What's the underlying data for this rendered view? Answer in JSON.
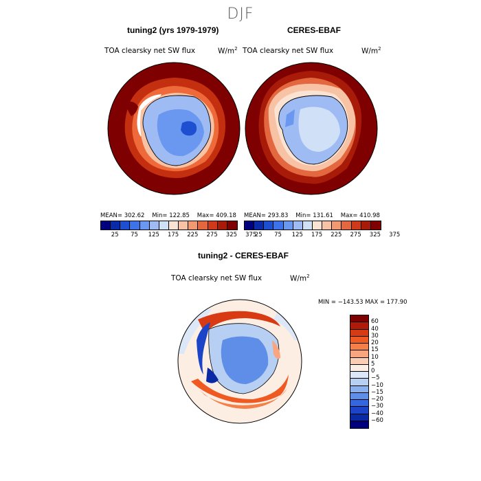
{
  "season": "DJF",
  "panels": {
    "left": {
      "title": "tuning2 (yrs 1979-1979)",
      "variable": "TOA clearsky net SW flux",
      "units": "W/m",
      "units_sup": "2",
      "mean_label": "MEAN=",
      "mean": "302.62",
      "min_label": "Min=",
      "min": "122.85",
      "max_label": "Max=",
      "max": "409.18"
    },
    "right": {
      "title": "CERES-EBAF",
      "variable": "TOA clearsky net SW flux",
      "units": "W/m",
      "units_sup": "2",
      "mean_label": "MEAN=",
      "mean": "293.83",
      "min_label": "Min=",
      "min": "131.61",
      "max_label": "Max=",
      "max": "410.98"
    },
    "diff": {
      "title": "tuning2 - CERES-EBAF",
      "variable": "TOA clearsky net SW flux",
      "units": "W/m",
      "units_sup": "2",
      "minmax": "MIN = −143.53  MAX = 177.90"
    }
  },
  "colorbar_abs": {
    "colors": [
      "#00007f",
      "#0a2aa8",
      "#1e4fd0",
      "#3d73e8",
      "#6a97f0",
      "#9ebbf4",
      "#cfe0f7",
      "#fbe3d3",
      "#f8c3a4",
      "#f19a72",
      "#e4683f",
      "#cf3b1a",
      "#a81b08",
      "#7f0000"
    ],
    "ticks": [
      "25",
      "75",
      "125",
      "175",
      "225",
      "275",
      "325",
      "375"
    ]
  },
  "colorbar_diff": {
    "colors": [
      "#7f0000",
      "#b01a08",
      "#d83a14",
      "#ef5a22",
      "#f57f48",
      "#f9a680",
      "#fbcdb2",
      "#fdeee3",
      "#dce8f7",
      "#b6cff3",
      "#8bb0ee",
      "#5f8ee8",
      "#3466df",
      "#1b44c9",
      "#0a2aa5",
      "#00007f"
    ],
    "ticks": [
      "60",
      "40",
      "30",
      "20",
      "15",
      "10",
      "5",
      "0",
      "−5",
      "−10",
      "−15",
      "−20",
      "−30",
      "−40",
      "−60"
    ]
  }
}
